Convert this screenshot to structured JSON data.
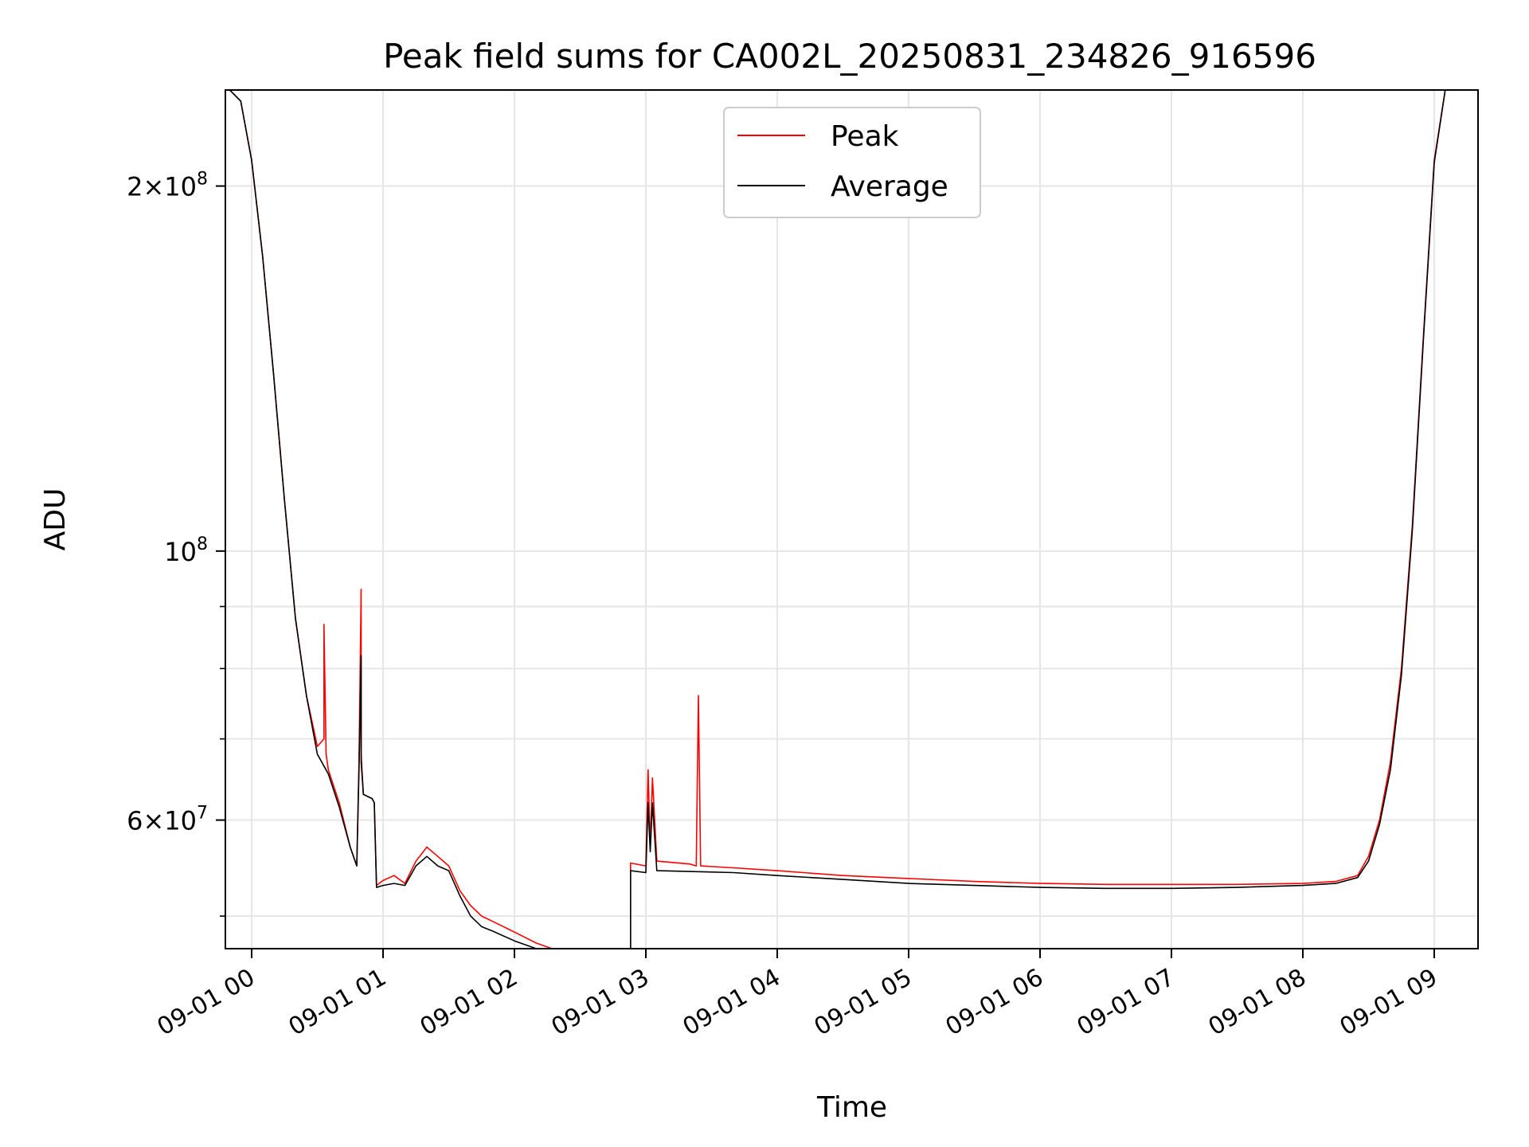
{
  "chart_data": {
    "type": "line",
    "title": "Peak field sums for CA002L_20250831_234826_916596",
    "xlabel": "Time",
    "ylabel": "ADU",
    "y_scale": "log",
    "grid": true,
    "legend_placement": "top-center",
    "xlim": [
      "2025-08-31 23:48",
      "2025-09-01 09:20"
    ],
    "ylim": [
      47000000,
      240000000
    ],
    "x_ticks": [
      "2025-09-01 00:00",
      "2025-09-01 01:00",
      "2025-09-01 02:00",
      "2025-09-01 03:00",
      "2025-09-01 04:00",
      "2025-09-01 05:00",
      "2025-09-01 06:00",
      "2025-09-01 07:00",
      "2025-09-01 08:00",
      "2025-09-01 09:00"
    ],
    "x_tick_labels": [
      "09-01 00",
      "09-01 01",
      "09-01 02",
      "09-01 03",
      "09-01 04",
      "09-01 05",
      "09-01 06",
      "09-01 07",
      "09-01 08",
      "09-01 09"
    ],
    "y_ticks": [
      {
        "value": 200000000,
        "label_main": "2×10",
        "label_exp": "8"
      },
      {
        "value": 100000000,
        "label_main": "10",
        "label_exp": "8"
      },
      {
        "value": 60000000,
        "label_main": "6×10",
        "label_exp": "7"
      }
    ],
    "y_minor_ticks": [
      50000000,
      70000000,
      80000000,
      90000000
    ],
    "series": [
      {
        "name": "Peak",
        "color": "#ff0000",
        "x": [
          "2025-08-31 23:50",
          "2025-08-31 23:55",
          "2025-09-01 00:00",
          "2025-09-01 00:05",
          "2025-09-01 00:10",
          "2025-09-01 00:15",
          "2025-09-01 00:20",
          "2025-09-01 00:25",
          "2025-09-01 00:30",
          "2025-09-01 00:33",
          "2025-09-01 00:33",
          "2025-09-01 00:34",
          "2025-09-01 00:35",
          "2025-09-01 00:40",
          "2025-09-01 00:45",
          "2025-09-01 00:48",
          "2025-09-01 00:49",
          "2025-09-01 00:50",
          "2025-09-01 00:50",
          "2025-09-01 00:51",
          "2025-09-01 00:55",
          "2025-09-01 00:56",
          "2025-09-01 00:57",
          "2025-09-01 01:00",
          "2025-09-01 01:05",
          "2025-09-01 01:10",
          "2025-09-01 01:15",
          "2025-09-01 01:20",
          "2025-09-01 01:25",
          "2025-09-01 01:30",
          "2025-09-01 01:35",
          "2025-09-01 01:40",
          "2025-09-01 01:45",
          "2025-09-01 01:50",
          "2025-09-01 02:00",
          "2025-09-01 02:10",
          "2025-09-01 02:20",
          "2025-09-01 02:30",
          "2025-09-01 02:40",
          "2025-09-01 02:50",
          "2025-09-01 02:53",
          "2025-09-01 02:53",
          "2025-09-01 03:00",
          "2025-09-01 03:01",
          "2025-09-01 03:02",
          "2025-09-01 03:03",
          "2025-09-01 03:05",
          "2025-09-01 03:20",
          "2025-09-01 03:23",
          "2025-09-01 03:24",
          "2025-09-01 03:25",
          "2025-09-01 03:40",
          "2025-09-01 04:00",
          "2025-09-01 04:30",
          "2025-09-01 05:00",
          "2025-09-01 05:30",
          "2025-09-01 06:00",
          "2025-09-01 06:30",
          "2025-09-01 07:00",
          "2025-09-01 07:30",
          "2025-09-01 08:00",
          "2025-09-01 08:15",
          "2025-09-01 08:25",
          "2025-09-01 08:30",
          "2025-09-01 08:35",
          "2025-09-01 08:40",
          "2025-09-01 08:45",
          "2025-09-01 08:50",
          "2025-09-01 08:55",
          "2025-09-01 09:00",
          "2025-09-01 09:05",
          "2025-09-01 09:10"
        ],
        "y": [
          240000000,
          235000000,
          210000000,
          175000000,
          140000000,
          110000000,
          88000000,
          76000000,
          69000000,
          70000000,
          87000000,
          68000000,
          66000000,
          62000000,
          57000000,
          55000000,
          67000000,
          93000000,
          68000000,
          63000000,
          62500000,
          62000000,
          53000000,
          53500000,
          54000000,
          53200000,
          55500000,
          57000000,
          56000000,
          55000000,
          52500000,
          51000000,
          50000000,
          49500000,
          48500000,
          47500000,
          46800000,
          46200000,
          45800000,
          45500000,
          45300000,
          55300000,
          55000000,
          66000000,
          57000000,
          65000000,
          55500000,
          55200000,
          55000000,
          76000000,
          55000000,
          54800000,
          54500000,
          54000000,
          53700000,
          53400000,
          53200000,
          53100000,
          53100000,
          53100000,
          53200000,
          53400000,
          54000000,
          56000000,
          60000000,
          67000000,
          80000000,
          105000000,
          150000000,
          210000000,
          240000000,
          240000000
        ]
      },
      {
        "name": "Average",
        "color": "#000000",
        "x": [
          "2025-08-31 23:50",
          "2025-08-31 23:55",
          "2025-09-01 00:00",
          "2025-09-01 00:05",
          "2025-09-01 00:10",
          "2025-09-01 00:15",
          "2025-09-01 00:20",
          "2025-09-01 00:25",
          "2025-09-01 00:30",
          "2025-09-01 00:35",
          "2025-09-01 00:40",
          "2025-09-01 00:45",
          "2025-09-01 00:48",
          "2025-09-01 00:49",
          "2025-09-01 00:50",
          "2025-09-01 00:50",
          "2025-09-01 00:51",
          "2025-09-01 00:55",
          "2025-09-01 00:56",
          "2025-09-01 00:57",
          "2025-09-01 01:00",
          "2025-09-01 01:05",
          "2025-09-01 01:10",
          "2025-09-01 01:15",
          "2025-09-01 01:20",
          "2025-09-01 01:25",
          "2025-09-01 01:30",
          "2025-09-01 01:35",
          "2025-09-01 01:40",
          "2025-09-01 01:45",
          "2025-09-01 01:50",
          "2025-09-01 02:00",
          "2025-09-01 02:10",
          "2025-09-01 02:20",
          "2025-09-01 02:30",
          "2025-09-01 02:40",
          "2025-09-01 02:50",
          "2025-09-01 02:53",
          "2025-09-01 02:53",
          "2025-09-01 03:00",
          "2025-09-01 03:01",
          "2025-09-01 03:02",
          "2025-09-01 03:03",
          "2025-09-01 03:05",
          "2025-09-01 03:40",
          "2025-09-01 04:00",
          "2025-09-01 04:30",
          "2025-09-01 05:00",
          "2025-09-01 05:30",
          "2025-09-01 06:00",
          "2025-09-01 06:30",
          "2025-09-01 07:00",
          "2025-09-01 07:30",
          "2025-09-01 08:00",
          "2025-09-01 08:15",
          "2025-09-01 08:25",
          "2025-09-01 08:30",
          "2025-09-01 08:35",
          "2025-09-01 08:40",
          "2025-09-01 08:45",
          "2025-09-01 08:50",
          "2025-09-01 08:55",
          "2025-09-01 09:00",
          "2025-09-01 09:05",
          "2025-09-01 09:10"
        ],
        "y": [
          240000000,
          235000000,
          210000000,
          175000000,
          140000000,
          110000000,
          88000000,
          76000000,
          68000000,
          65500000,
          61500000,
          57000000,
          55000000,
          66000000,
          82000000,
          67000000,
          63000000,
          62500000,
          62000000,
          52800000,
          53000000,
          53200000,
          53000000,
          55000000,
          56000000,
          55000000,
          54500000,
          52000000,
          50000000,
          49000000,
          48600000,
          47700000,
          47000000,
          46400000,
          45900000,
          45500000,
          45100000,
          45000000,
          54500000,
          54300000,
          62000000,
          56500000,
          62000000,
          54500000,
          54300000,
          54000000,
          53600000,
          53200000,
          53000000,
          52800000,
          52700000,
          52700000,
          52800000,
          53000000,
          53200000,
          53800000,
          55500000,
          59500000,
          66000000,
          79000000,
          104000000,
          149000000,
          209000000,
          240000000,
          240000000
        ]
      }
    ]
  }
}
